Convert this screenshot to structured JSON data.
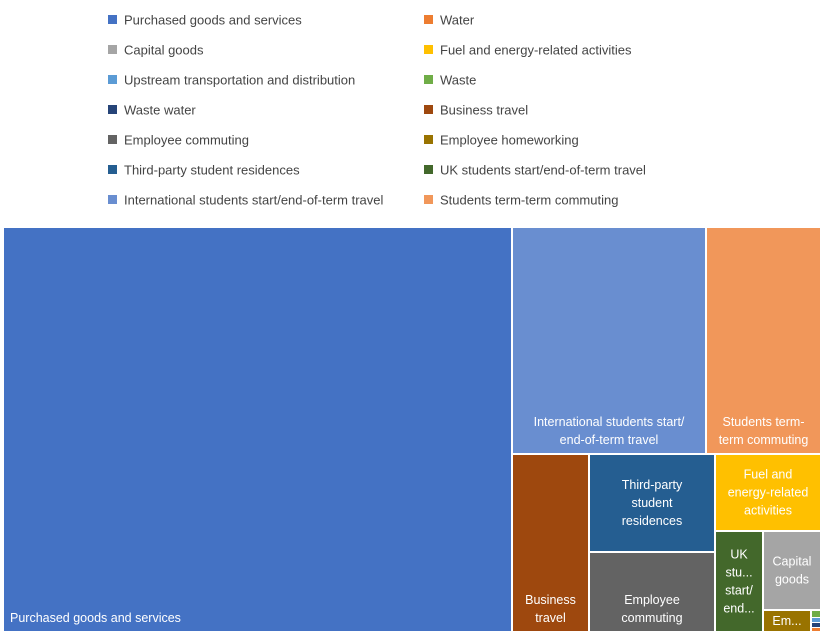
{
  "chart_data": {
    "type": "treemap",
    "title": "",
    "legend_position": "top",
    "legend": [
      {
        "name": "Purchased goods and services",
        "color": "#4472C4"
      },
      {
        "name": "Water",
        "color": "#ED7D31"
      },
      {
        "name": "Capital goods",
        "color": "#A5A5A5"
      },
      {
        "name": "Fuel and energy-related activities",
        "color": "#FFC000"
      },
      {
        "name": "Upstream transportation and distribution",
        "color": "#5B9BD5"
      },
      {
        "name": "Waste",
        "color": "#70AD47"
      },
      {
        "name": "Waste water",
        "color": "#264478"
      },
      {
        "name": "Business travel",
        "color": "#9E480E"
      },
      {
        "name": "Employee commuting",
        "color": "#636363"
      },
      {
        "name": "Employee homeworking",
        "color": "#997300"
      },
      {
        "name": "Third-party student residences",
        "color": "#255E91"
      },
      {
        "name": "UK students start/end-of-term travel",
        "color": "#43682B"
      },
      {
        "name": "International students start/end-of-term travel",
        "color": "#698ED0"
      },
      {
        "name": "Students term-term commuting",
        "color": "#F1975A"
      }
    ],
    "tiles": [
      {
        "name": "Purchased goods and services",
        "label": [
          "Purchased goods and services"
        ],
        "color": "#4472C4"
      },
      {
        "name": "International students start/end-of-term travel",
        "label": [
          "International students start/",
          "end-of-term travel"
        ],
        "color": "#698ED0"
      },
      {
        "name": "Students term-term commuting",
        "label": [
          "Students term-",
          "term commuting"
        ],
        "color": "#F1975A"
      },
      {
        "name": "Business travel",
        "label": [
          "Business",
          "travel"
        ],
        "color": "#9E480E"
      },
      {
        "name": "Third-party student residences",
        "label": [
          "Third-party",
          "student",
          "residences"
        ],
        "color": "#255E91"
      },
      {
        "name": "Employee commuting",
        "label": [
          "Employee",
          "commuting"
        ],
        "color": "#636363"
      },
      {
        "name": "Fuel and energy-related activities",
        "label": [
          "Fuel and",
          "energy-related",
          "activities"
        ],
        "color": "#FFC000"
      },
      {
        "name": "UK students start/end-of-term travel",
        "label": [
          "UK",
          "stu...",
          "start/",
          "end..."
        ],
        "color": "#43682B"
      },
      {
        "name": "Capital goods",
        "label": [
          "Capital",
          "goods"
        ],
        "color": "#A5A5A5"
      },
      {
        "name": "Employee homeworking",
        "label": [
          "Em..."
        ],
        "color": "#997300"
      },
      {
        "name": "Waste",
        "label": [],
        "color": "#70AD47"
      },
      {
        "name": "Upstream transportation and distribution",
        "label": [],
        "color": "#5B9BD5"
      },
      {
        "name": "Waste water",
        "label": [],
        "color": "#264478"
      },
      {
        "name": "Water",
        "label": [],
        "color": "#ED7D31"
      }
    ]
  }
}
